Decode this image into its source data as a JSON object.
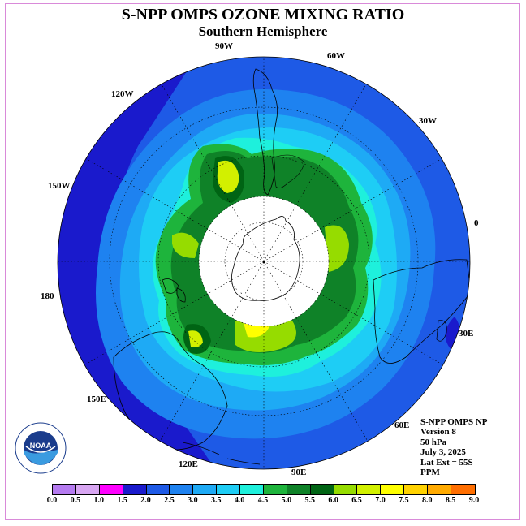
{
  "header": {
    "title": "S-NPP OMPS OZONE MIXING RATIO",
    "subtitle": "Southern Hemisphere"
  },
  "longitude_labels": [
    {
      "text": "90W",
      "id": "90w"
    },
    {
      "text": "60W",
      "id": "60w"
    },
    {
      "text": "30W",
      "id": "30w"
    },
    {
      "text": "120W",
      "id": "120w"
    },
    {
      "text": "150W",
      "id": "150w"
    },
    {
      "text": "0",
      "id": "0"
    },
    {
      "text": "180",
      "id": "180"
    },
    {
      "text": "30E",
      "id": "30e"
    },
    {
      "text": "150E",
      "id": "150e"
    },
    {
      "text": "60E",
      "id": "60e"
    },
    {
      "text": "120E",
      "id": "120e"
    },
    {
      "text": "90E",
      "id": "90e"
    }
  ],
  "info": {
    "line1": "S-NPP OMPS NP",
    "line2": "Version 8",
    "line3": "50 hPa",
    "line4": "July 3, 2025",
    "line5": "Lat Ext = 55S",
    "line6": "PPM"
  },
  "logo": {
    "text": "NOAA",
    "ring_text": "NATIONAL OCEANIC AND ATMOSPHERIC ADMINISTRATION · U.S. DEPARTMENT OF COMMERCE"
  },
  "colorbar": {
    "ticks": [
      "0.0",
      "0.5",
      "1.0",
      "1.5",
      "2.0",
      "2.5",
      "3.0",
      "3.5",
      "4.0",
      "4.5",
      "5.0",
      "5.5",
      "6.0",
      "6.5",
      "7.0",
      "7.5",
      "8.0",
      "8.5",
      "9.0"
    ],
    "colors": [
      "#b57bf0",
      "#d8a6f2",
      "#ff00ff",
      "#1a1acc",
      "#1e5ae6",
      "#1e82f0",
      "#1eaaf5",
      "#1ecdf5",
      "#1ef0dc",
      "#1eb43c",
      "#0f8228",
      "#006414",
      "#96dc00",
      "#d2f000",
      "#ffff00",
      "#ffd200",
      "#ffaa00",
      "#ff6e00",
      "#ff0000",
      "#8c6446"
    ]
  },
  "map": {
    "hemisphere": "south",
    "latitude_extent": "55S",
    "pole_hole_color": "#ffffff",
    "land_outline_color": "#000000",
    "grid_color": "#000000"
  }
}
